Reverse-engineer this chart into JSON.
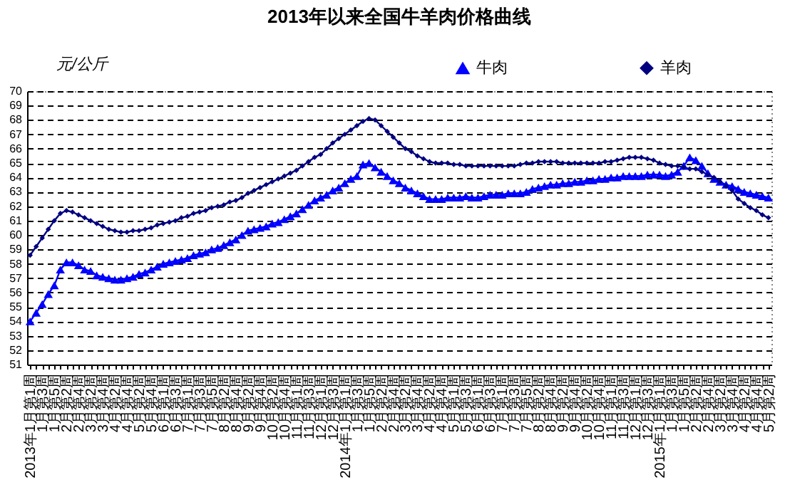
{
  "chart_data": {
    "type": "line",
    "title": "2013年以来全国牛羊肉价格曲线",
    "ylabel": "元/公斤",
    "categories": [
      "2013年1月第1周",
      null,
      "1月第3周",
      null,
      "1月第5周",
      null,
      "2月第2周",
      null,
      "2月第4周",
      null,
      "3月第2周",
      null,
      "3月第4周",
      null,
      "4月第2周",
      null,
      "4月第4周",
      null,
      "5月第2周",
      null,
      "5月第4周",
      null,
      "6月第1周",
      null,
      "6月第3周",
      null,
      "7月第1周",
      null,
      "7月第3周",
      null,
      "7月第5周",
      null,
      "8月第2周",
      null,
      "8月第4周",
      null,
      "9月第2周",
      null,
      "9月第4周",
      null,
      "10月第2周",
      null,
      "10月第4周",
      null,
      "11月第1周",
      null,
      "11月第3周",
      null,
      "12月第1周",
      null,
      "12月第3周",
      null,
      "2014年1月第1周",
      null,
      "1月第3周",
      null,
      "1月第5周",
      null,
      "2月第2周",
      null,
      "2月第4周",
      null,
      "3月第2周",
      null,
      "3月第4周",
      null,
      "4月第2周",
      null,
      "4月第4周",
      null,
      "5月第1周",
      null,
      "5月第3周",
      null,
      "6月第1周",
      null,
      "6月第3周",
      null,
      "7月第1周",
      null,
      "7月第3周",
      null,
      "7月第5周",
      null,
      "8月第2周",
      null,
      "8月第4周",
      null,
      "9月第2周",
      null,
      "9月第4周",
      null,
      "10月第2周",
      null,
      "10月第4周",
      null,
      "11月第1周",
      null,
      "11月第3周",
      null,
      "12月第1周",
      null,
      "12月第3周",
      null,
      "2015年1月第1周",
      null,
      "1月第3周",
      null,
      "1月第5周",
      null,
      "2月第2周",
      null,
      "2月第4周",
      null,
      "3月第2周",
      null,
      "3月第4周",
      null,
      "4月第2周",
      null,
      "4月第4周",
      null,
      "5月第2周"
    ],
    "series": [
      {
        "name": "牛肉",
        "color": "#0000ff",
        "marker": "triangle",
        "values": [
          54.0,
          54.6,
          55.2,
          55.9,
          56.5,
          57.6,
          58.1,
          58.1,
          57.9,
          57.6,
          57.5,
          57.2,
          57.1,
          57.0,
          56.9,
          56.9,
          57.0,
          57.1,
          57.3,
          57.4,
          57.6,
          57.8,
          58.0,
          58.1,
          58.2,
          58.3,
          58.4,
          58.6,
          58.7,
          58.8,
          59.0,
          59.1,
          59.3,
          59.5,
          59.7,
          60.0,
          60.3,
          60.4,
          60.5,
          60.6,
          60.8,
          60.9,
          61.1,
          61.3,
          61.5,
          61.8,
          62.1,
          62.4,
          62.6,
          62.8,
          63.1,
          63.3,
          63.6,
          63.9,
          64.1,
          64.9,
          65.0,
          64.7,
          64.4,
          64.1,
          63.8,
          63.6,
          63.3,
          63.1,
          62.9,
          62.7,
          62.5,
          62.5,
          62.5,
          62.6,
          62.6,
          62.6,
          62.7,
          62.6,
          62.6,
          62.7,
          62.8,
          62.8,
          62.8,
          62.9,
          62.9,
          62.9,
          63.0,
          63.2,
          63.3,
          63.4,
          63.5,
          63.5,
          63.6,
          63.6,
          63.7,
          63.7,
          63.8,
          63.8,
          63.9,
          63.9,
          64.0,
          64.0,
          64.1,
          64.1,
          64.1,
          64.1,
          64.2,
          64.2,
          64.2,
          64.1,
          64.2,
          64.4,
          64.8,
          65.4,
          65.2,
          64.8,
          64.3,
          63.9,
          63.7,
          63.5,
          63.4,
          63.2,
          63.0,
          62.9,
          62.8,
          62.7,
          62.6
        ]
      },
      {
        "name": "羊肉",
        "color": "#000080",
        "marker": "diamond",
        "values": [
          58.6,
          59.2,
          59.8,
          60.4,
          61.0,
          61.5,
          61.7,
          61.6,
          61.4,
          61.2,
          61.0,
          60.8,
          60.6,
          60.4,
          60.3,
          60.2,
          60.2,
          60.3,
          60.3,
          60.4,
          60.5,
          60.7,
          60.8,
          60.9,
          61.0,
          61.2,
          61.3,
          61.5,
          61.6,
          61.7,
          61.9,
          62.0,
          62.1,
          62.3,
          62.4,
          62.6,
          62.9,
          63.1,
          63.3,
          63.5,
          63.7,
          63.9,
          64.1,
          64.3,
          64.5,
          64.8,
          65.1,
          65.4,
          65.6,
          66.0,
          66.4,
          66.7,
          67.0,
          67.3,
          67.6,
          67.9,
          68.1,
          68.0,
          67.6,
          67.2,
          66.8,
          66.4,
          66.0,
          65.8,
          65.5,
          65.3,
          65.1,
          65.0,
          65.0,
          65.0,
          64.9,
          64.9,
          64.8,
          64.8,
          64.8,
          64.8,
          64.8,
          64.8,
          64.8,
          64.8,
          64.8,
          64.9,
          65.0,
          65.0,
          65.1,
          65.1,
          65.1,
          65.1,
          65.0,
          65.0,
          65.0,
          65.0,
          65.0,
          65.0,
          65.0,
          65.1,
          65.1,
          65.2,
          65.3,
          65.4,
          65.4,
          65.4,
          65.3,
          65.2,
          65.0,
          64.9,
          64.8,
          64.8,
          64.7,
          64.6,
          64.6,
          64.4,
          64.2,
          64.0,
          63.7,
          63.4,
          63.1,
          62.5,
          62.2,
          61.9,
          61.7,
          61.4,
          61.2
        ]
      }
    ],
    "ylim": [
      51,
      70
    ],
    "yticks": [
      51,
      52,
      53,
      54,
      55,
      56,
      57,
      58,
      59,
      60,
      61,
      62,
      63,
      64,
      65,
      66,
      67,
      68,
      69,
      70
    ],
    "grid": "y",
    "line_style": "solid",
    "legend": "top right"
  }
}
